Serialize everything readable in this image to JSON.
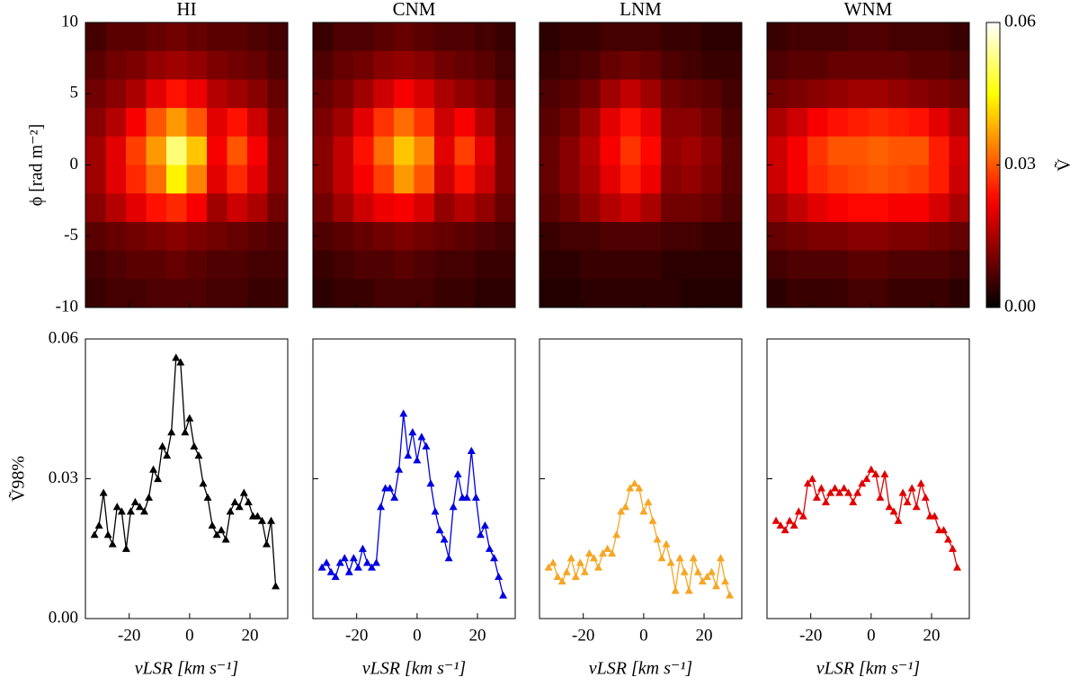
{
  "chart_data": [
    {
      "type": "heatmap",
      "title": "HI",
      "ylabel": "ϕ [rad m⁻²]",
      "colormap": "hot",
      "zlim": [
        0,
        0.06
      ],
      "xlim": [
        -34.5,
        32.5
      ],
      "xticks": [
        -20,
        0,
        20
      ],
      "ylim": [
        -10,
        10
      ],
      "yticks": [
        -10,
        -5,
        0,
        5,
        10
      ],
      "z": [
        [
          0.006,
          0.008,
          0.008,
          0.009,
          0.01,
          0.009,
          0.008,
          0.008,
          0.007,
          0.006
        ],
        [
          0.008,
          0.01,
          0.011,
          0.013,
          0.014,
          0.013,
          0.011,
          0.01,
          0.009,
          0.007
        ],
        [
          0.01,
          0.012,
          0.015,
          0.02,
          0.024,
          0.021,
          0.016,
          0.014,
          0.012,
          0.009
        ],
        [
          0.012,
          0.016,
          0.022,
          0.03,
          0.036,
          0.03,
          0.02,
          0.024,
          0.018,
          0.011
        ],
        [
          0.014,
          0.02,
          0.028,
          0.036,
          0.052,
          0.04,
          0.022,
          0.03,
          0.022,
          0.012
        ],
        [
          0.014,
          0.02,
          0.026,
          0.032,
          0.044,
          0.034,
          0.02,
          0.026,
          0.02,
          0.012
        ],
        [
          0.012,
          0.016,
          0.02,
          0.024,
          0.026,
          0.022,
          0.014,
          0.018,
          0.015,
          0.01
        ],
        [
          0.008,
          0.009,
          0.01,
          0.011,
          0.012,
          0.011,
          0.01,
          0.009,
          0.008,
          0.007
        ],
        [
          0.006,
          0.007,
          0.008,
          0.008,
          0.009,
          0.008,
          0.007,
          0.007,
          0.006,
          0.006
        ],
        [
          0.005,
          0.006,
          0.006,
          0.007,
          0.007,
          0.007,
          0.006,
          0.006,
          0.005,
          0.005
        ]
      ]
    },
    {
      "type": "heatmap",
      "title": "CNM",
      "colormap": "hot",
      "zlim": [
        0,
        0.06
      ],
      "xlim": [
        -34.5,
        32.5
      ],
      "xticks": [
        -20,
        0,
        20
      ],
      "ylim": [
        -10,
        10
      ],
      "yticks": [
        -10,
        -5,
        0,
        5,
        10
      ],
      "z": [
        [
          0.005,
          0.007,
          0.007,
          0.008,
          0.009,
          0.008,
          0.007,
          0.007,
          0.006,
          0.005
        ],
        [
          0.007,
          0.009,
          0.01,
          0.012,
          0.013,
          0.012,
          0.01,
          0.009,
          0.008,
          0.006
        ],
        [
          0.009,
          0.011,
          0.014,
          0.018,
          0.022,
          0.019,
          0.015,
          0.013,
          0.011,
          0.008
        ],
        [
          0.011,
          0.014,
          0.02,
          0.027,
          0.032,
          0.027,
          0.018,
          0.022,
          0.016,
          0.01
        ],
        [
          0.012,
          0.017,
          0.024,
          0.032,
          0.04,
          0.034,
          0.02,
          0.028,
          0.02,
          0.011
        ],
        [
          0.012,
          0.017,
          0.022,
          0.028,
          0.036,
          0.03,
          0.018,
          0.024,
          0.018,
          0.011
        ],
        [
          0.01,
          0.014,
          0.018,
          0.021,
          0.022,
          0.019,
          0.013,
          0.016,
          0.013,
          0.009
        ],
        [
          0.007,
          0.008,
          0.009,
          0.01,
          0.011,
          0.01,
          0.009,
          0.008,
          0.007,
          0.006
        ],
        [
          0.005,
          0.006,
          0.007,
          0.007,
          0.008,
          0.007,
          0.006,
          0.006,
          0.005,
          0.005
        ],
        [
          0.004,
          0.005,
          0.005,
          0.006,
          0.006,
          0.006,
          0.005,
          0.005,
          0.004,
          0.004
        ]
      ]
    },
    {
      "type": "heatmap",
      "title": "LNM",
      "colormap": "hot",
      "zlim": [
        0,
        0.06
      ],
      "xlim": [
        -34.5,
        32.5
      ],
      "xticks": [
        -20,
        0,
        20
      ],
      "ylim": [
        -10,
        10
      ],
      "yticks": [
        -10,
        -5,
        0,
        5,
        10
      ],
      "z": [
        [
          0.004,
          0.005,
          0.005,
          0.006,
          0.006,
          0.006,
          0.005,
          0.005,
          0.004,
          0.004
        ],
        [
          0.005,
          0.006,
          0.007,
          0.009,
          0.01,
          0.009,
          0.007,
          0.006,
          0.005,
          0.005
        ],
        [
          0.007,
          0.008,
          0.01,
          0.014,
          0.017,
          0.014,
          0.01,
          0.009,
          0.008,
          0.006
        ],
        [
          0.008,
          0.01,
          0.014,
          0.02,
          0.024,
          0.02,
          0.012,
          0.012,
          0.01,
          0.007
        ],
        [
          0.009,
          0.012,
          0.016,
          0.022,
          0.027,
          0.023,
          0.013,
          0.014,
          0.012,
          0.008
        ],
        [
          0.009,
          0.012,
          0.015,
          0.02,
          0.025,
          0.021,
          0.012,
          0.013,
          0.011,
          0.008
        ],
        [
          0.008,
          0.01,
          0.013,
          0.016,
          0.018,
          0.015,
          0.01,
          0.01,
          0.009,
          0.007
        ],
        [
          0.005,
          0.006,
          0.006,
          0.007,
          0.007,
          0.007,
          0.006,
          0.006,
          0.005,
          0.005
        ],
        [
          0.004,
          0.004,
          0.005,
          0.005,
          0.005,
          0.005,
          0.004,
          0.004,
          0.004,
          0.004
        ],
        [
          0.003,
          0.003,
          0.004,
          0.004,
          0.004,
          0.004,
          0.004,
          0.003,
          0.003,
          0.003
        ]
      ]
    },
    {
      "type": "heatmap",
      "title": "WNM",
      "colormap": "hot",
      "zlim": [
        0,
        0.06
      ],
      "xlim": [
        -34.5,
        32.5
      ],
      "xticks": [
        -20,
        0,
        20
      ],
      "ylim": [
        -10,
        10
      ],
      "yticks": [
        -10,
        -5,
        0,
        5,
        10
      ],
      "z": [
        [
          0.005,
          0.006,
          0.006,
          0.006,
          0.007,
          0.007,
          0.006,
          0.006,
          0.006,
          0.005
        ],
        [
          0.007,
          0.008,
          0.008,
          0.009,
          0.009,
          0.009,
          0.009,
          0.008,
          0.008,
          0.007
        ],
        [
          0.01,
          0.011,
          0.012,
          0.013,
          0.014,
          0.014,
          0.013,
          0.012,
          0.011,
          0.01
        ],
        [
          0.015,
          0.018,
          0.022,
          0.024,
          0.025,
          0.026,
          0.025,
          0.024,
          0.02,
          0.016
        ],
        [
          0.018,
          0.022,
          0.027,
          0.03,
          0.03,
          0.031,
          0.03,
          0.03,
          0.025,
          0.019
        ],
        [
          0.018,
          0.022,
          0.026,
          0.028,
          0.029,
          0.03,
          0.029,
          0.028,
          0.025,
          0.018
        ],
        [
          0.014,
          0.017,
          0.02,
          0.022,
          0.023,
          0.023,
          0.022,
          0.022,
          0.019,
          0.015
        ],
        [
          0.009,
          0.01,
          0.011,
          0.011,
          0.012,
          0.012,
          0.011,
          0.011,
          0.01,
          0.009
        ],
        [
          0.006,
          0.007,
          0.007,
          0.007,
          0.008,
          0.008,
          0.007,
          0.007,
          0.007,
          0.006
        ],
        [
          0.004,
          0.005,
          0.005,
          0.005,
          0.006,
          0.006,
          0.005,
          0.005,
          0.005,
          0.004
        ]
      ]
    },
    {
      "type": "line",
      "ylabel": "Ṽ98%",
      "xlabel": "vLSR [km s⁻¹]",
      "color": "#000000",
      "xlim": [
        -34.5,
        32.5
      ],
      "xticks": [
        -20,
        0,
        20
      ],
      "ylim": [
        0,
        0.06
      ],
      "yticks": [
        {
          "value": 0,
          "label": "0.00"
        },
        {
          "value": 0.03,
          "label": "0.03"
        },
        {
          "value": 0.06,
          "label": "0.06"
        }
      ],
      "x": [
        -31.5,
        -30,
        -28.5,
        -27,
        -25.5,
        -24,
        -22.5,
        -21,
        -19.5,
        -18,
        -16.5,
        -15,
        -13.5,
        -12,
        -10.5,
        -9,
        -7.5,
        -6,
        -4.5,
        -3,
        -1.5,
        0,
        1.5,
        3,
        4.5,
        6,
        7.5,
        9,
        10.5,
        12,
        13.5,
        15,
        16.5,
        18,
        19.5,
        21,
        22.5,
        24,
        25.5,
        27,
        28.5
      ],
      "values": [
        0.018,
        0.02,
        0.027,
        0.018,
        0.016,
        0.024,
        0.023,
        0.015,
        0.023,
        0.025,
        0.024,
        0.023,
        0.026,
        0.032,
        0.03,
        0.037,
        0.035,
        0.04,
        0.056,
        0.055,
        0.04,
        0.043,
        0.037,
        0.035,
        0.029,
        0.026,
        0.02,
        0.018,
        0.019,
        0.017,
        0.023,
        0.025,
        0.024,
        0.027,
        0.025,
        0.022,
        0.022,
        0.021,
        0.016,
        0.021,
        0.007
      ]
    },
    {
      "type": "line",
      "xlabel": "vLSR [km s⁻¹]",
      "color": "#0000e0",
      "xlim": [
        -34.5,
        32.5
      ],
      "xticks": [
        -20,
        0,
        20
      ],
      "ylim": [
        0,
        0.06
      ],
      "yticks": [
        0,
        0.03,
        0.06
      ],
      "x": [
        -31.5,
        -30,
        -28.5,
        -27,
        -25.5,
        -24,
        -22.5,
        -21,
        -19.5,
        -18,
        -16.5,
        -15,
        -13.5,
        -12,
        -10.5,
        -9,
        -7.5,
        -6,
        -4.5,
        -3,
        -1.5,
        0,
        1.5,
        3,
        4.5,
        6,
        7.5,
        9,
        10.5,
        12,
        13.5,
        15,
        16.5,
        18,
        19.5,
        21,
        22.5,
        24,
        25.5,
        27,
        28.5
      ],
      "values": [
        0.011,
        0.012,
        0.01,
        0.009,
        0.012,
        0.013,
        0.01,
        0.013,
        0.011,
        0.015,
        0.012,
        0.011,
        0.012,
        0.024,
        0.028,
        0.028,
        0.026,
        0.032,
        0.044,
        0.035,
        0.04,
        0.034,
        0.039,
        0.037,
        0.029,
        0.023,
        0.019,
        0.017,
        0.013,
        0.024,
        0.031,
        0.026,
        0.026,
        0.036,
        0.026,
        0.018,
        0.02,
        0.015,
        0.013,
        0.009,
        0.005
      ]
    },
    {
      "type": "line",
      "xlabel": "vLSR [km s⁻¹]",
      "color": "#f5a623",
      "xlim": [
        -34.5,
        32.5
      ],
      "xticks": [
        -20,
        0,
        20
      ],
      "ylim": [
        0,
        0.06
      ],
      "yticks": [
        0,
        0.03,
        0.06
      ],
      "x": [
        -31.5,
        -30,
        -28.5,
        -27,
        -25.5,
        -24,
        -22.5,
        -21,
        -19.5,
        -18,
        -16.5,
        -15,
        -13.5,
        -12,
        -10.5,
        -9,
        -7.5,
        -6,
        -4.5,
        -3,
        -1.5,
        0,
        1.5,
        3,
        4.5,
        6,
        7.5,
        9,
        10.5,
        12,
        13.5,
        15,
        16.5,
        18,
        19.5,
        21,
        22.5,
        24,
        25.5,
        27,
        28.5
      ],
      "values": [
        0.011,
        0.012,
        0.009,
        0.008,
        0.01,
        0.013,
        0.009,
        0.012,
        0.01,
        0.014,
        0.013,
        0.011,
        0.014,
        0.015,
        0.014,
        0.018,
        0.023,
        0.024,
        0.028,
        0.029,
        0.028,
        0.023,
        0.025,
        0.021,
        0.017,
        0.013,
        0.016,
        0.012,
        0.006,
        0.013,
        0.01,
        0.006,
        0.013,
        0.01,
        0.008,
        0.009,
        0.01,
        0.007,
        0.013,
        0.008,
        0.005
      ]
    },
    {
      "type": "line",
      "xlabel": "vLSR [km s⁻¹]",
      "color": "#e00000",
      "xlim": [
        -34.5,
        32.5
      ],
      "xticks": [
        -20,
        0,
        20
      ],
      "ylim": [
        0,
        0.06
      ],
      "yticks": [
        0,
        0.03,
        0.06
      ],
      "x": [
        -31.5,
        -30,
        -28.5,
        -27,
        -25.5,
        -24,
        -22.5,
        -21,
        -19.5,
        -18,
        -16.5,
        -15,
        -13.5,
        -12,
        -10.5,
        -9,
        -7.5,
        -6,
        -4.5,
        -3,
        -1.5,
        0,
        1.5,
        3,
        4.5,
        6,
        7.5,
        9,
        10.5,
        12,
        13.5,
        15,
        16.5,
        18,
        19.5,
        21,
        22.5,
        24,
        25.5,
        27,
        28.5
      ],
      "values": [
        0.021,
        0.02,
        0.019,
        0.021,
        0.02,
        0.023,
        0.022,
        0.029,
        0.03,
        0.026,
        0.028,
        0.025,
        0.027,
        0.028,
        0.027,
        0.028,
        0.027,
        0.025,
        0.027,
        0.029,
        0.03,
        0.032,
        0.031,
        0.026,
        0.031,
        0.024,
        0.023,
        0.021,
        0.027,
        0.025,
        0.028,
        0.024,
        0.029,
        0.026,
        0.022,
        0.022,
        0.019,
        0.019,
        0.017,
        0.015,
        0.011
      ]
    },
    {
      "type": "colorbar",
      "label": "Ṽ",
      "colormap": "hot",
      "zlim": [
        0,
        0.06
      ],
      "zticks": [
        {
          "value": 0,
          "label": "0.00"
        },
        {
          "value": 0.03,
          "label": "0.03"
        },
        {
          "value": 0.06,
          "label": "0.06"
        }
      ]
    }
  ]
}
